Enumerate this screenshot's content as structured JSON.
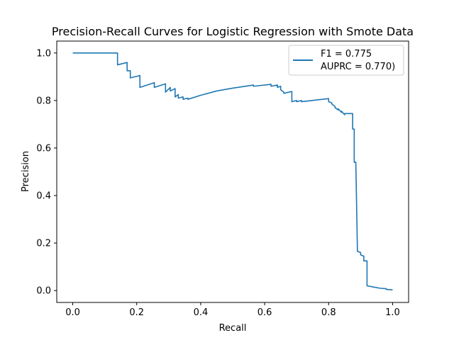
{
  "chart_data": {
    "type": "line",
    "title": "Precision-Recall Curves for Logistic Regression with Smote Data",
    "xlabel": "Recall",
    "ylabel": "Precision",
    "xlim": [
      -0.05,
      1.05
    ],
    "ylim": [
      -0.05,
      1.05
    ],
    "xticks": [
      "0.0",
      "0.2",
      "0.4",
      "0.6",
      "0.8",
      "1.0"
    ],
    "yticks": [
      "0.0",
      "0.2",
      "0.4",
      "0.6",
      "0.8",
      "1.0"
    ],
    "grid": false,
    "legend_position": "top-right",
    "legend": [
      "F1 = 0.775",
      "AUPRC = 0.770)"
    ],
    "series": [
      {
        "color": "#1f77b4",
        "x": [
          0.0,
          0.14,
          0.14,
          0.17,
          0.17,
          0.18,
          0.18,
          0.21,
          0.21,
          0.255,
          0.255,
          0.29,
          0.29,
          0.305,
          0.305,
          0.32,
          0.32,
          0.33,
          0.33,
          0.345,
          0.345,
          0.36,
          0.36,
          0.4,
          0.45,
          0.5,
          0.565,
          0.565,
          0.62,
          0.62,
          0.64,
          0.64,
          0.65,
          0.65,
          0.66,
          0.66,
          0.685,
          0.685,
          0.7,
          0.7,
          0.715,
          0.715,
          0.8,
          0.8,
          0.81,
          0.81,
          0.82,
          0.82,
          0.83,
          0.83,
          0.84,
          0.84,
          0.85,
          0.85,
          0.86,
          0.86,
          0.875,
          0.875,
          0.88,
          0.88,
          0.885,
          0.885,
          0.89,
          0.89,
          0.9,
          0.9,
          0.91,
          0.91,
          0.92,
          0.92,
          0.94,
          0.96,
          0.98,
          0.98,
          1.0
        ],
        "y": [
          1.0,
          1.0,
          0.95,
          0.96,
          0.925,
          0.925,
          0.895,
          0.905,
          0.855,
          0.875,
          0.855,
          0.87,
          0.835,
          0.855,
          0.84,
          0.85,
          0.815,
          0.825,
          0.81,
          0.815,
          0.805,
          0.81,
          0.805,
          0.822,
          0.84,
          0.852,
          0.865,
          0.86,
          0.868,
          0.86,
          0.865,
          0.855,
          0.86,
          0.845,
          0.835,
          0.83,
          0.838,
          0.795,
          0.8,
          0.795,
          0.8,
          0.795,
          0.808,
          0.795,
          0.79,
          0.785,
          0.775,
          0.77,
          0.76,
          0.765,
          0.75,
          0.755,
          0.74,
          0.745,
          0.745,
          0.745,
          0.745,
          0.68,
          0.68,
          0.54,
          0.54,
          0.54,
          0.17,
          0.165,
          0.16,
          0.15,
          0.145,
          0.125,
          0.125,
          0.02,
          0.015,
          0.01,
          0.008,
          0.005,
          0.003
        ]
      }
    ]
  }
}
